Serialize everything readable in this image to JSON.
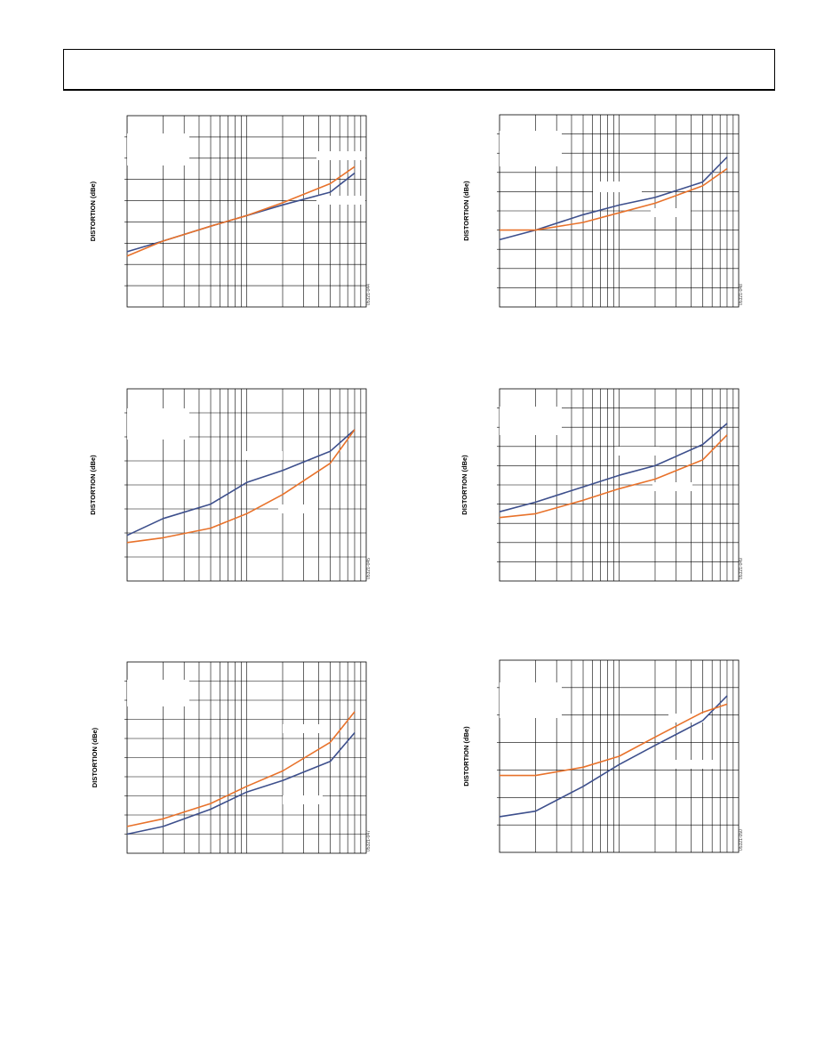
{
  "colors": {
    "series_blue": "#3d4f8c",
    "series_orange": "#e8722b",
    "grid": "#000000"
  },
  "chart_data": [
    {
      "type": "line",
      "ylabel": "DISTORTION (dBe)",
      "figure_id": "05321-044",
      "x_scale": "log",
      "xlim": [
        1,
        100
      ],
      "ylim": [
        0,
        9
      ],
      "grid": true,
      "series": [
        {
          "color_key": "series_blue",
          "x": [
            1,
            2,
            5,
            10,
            20,
            50,
            80
          ],
          "y": [
            2.6,
            3.1,
            3.8,
            4.3,
            4.8,
            5.4,
            6.3
          ]
        },
        {
          "color_key": "series_orange",
          "x": [
            1,
            2,
            5,
            10,
            20,
            50,
            80
          ],
          "y": [
            2.4,
            3.1,
            3.8,
            4.3,
            4.9,
            5.8,
            6.6
          ]
        }
      ]
    },
    {
      "type": "line",
      "ylabel": "DISTORTION (dBe)",
      "figure_id": "05321-048",
      "x_scale": "log",
      "xlim": [
        1,
        100
      ],
      "ylim": [
        0,
        10
      ],
      "grid": true,
      "series": [
        {
          "color_key": "series_blue",
          "x": [
            1,
            2,
            5,
            10,
            20,
            50,
            80
          ],
          "y": [
            3.5,
            4.0,
            4.8,
            5.3,
            5.7,
            6.5,
            7.8
          ]
        },
        {
          "color_key": "series_orange",
          "x": [
            1,
            2,
            5,
            10,
            20,
            50,
            80
          ],
          "y": [
            4.0,
            4.0,
            4.4,
            4.9,
            5.4,
            6.3,
            7.2
          ]
        }
      ]
    },
    {
      "type": "line",
      "ylabel": "DISTORTION (dBe)",
      "figure_id": "05321-045",
      "x_scale": "log",
      "xlim": [
        1,
        100
      ],
      "ylim": [
        0,
        8
      ],
      "grid": true,
      "series": [
        {
          "color_key": "series_blue",
          "x": [
            1,
            2,
            5,
            10,
            20,
            50,
            80
          ],
          "y": [
            1.9,
            2.6,
            3.2,
            4.1,
            4.6,
            5.4,
            6.3
          ]
        },
        {
          "color_key": "series_orange",
          "x": [
            1,
            2,
            5,
            10,
            20,
            50,
            80
          ],
          "y": [
            1.6,
            1.8,
            2.2,
            2.8,
            3.6,
            4.9,
            6.3
          ]
        }
      ]
    },
    {
      "type": "line",
      "ylabel": "DISTORTION (dBe)",
      "figure_id": "05321-049",
      "x_scale": "log",
      "xlim": [
        1,
        100
      ],
      "ylim": [
        0,
        10
      ],
      "grid": true,
      "series": [
        {
          "color_key": "series_blue",
          "x": [
            1,
            2,
            5,
            10,
            20,
            50,
            80
          ],
          "y": [
            3.6,
            4.1,
            4.9,
            5.5,
            6.0,
            7.1,
            8.2
          ]
        },
        {
          "color_key": "series_orange",
          "x": [
            1,
            2,
            5,
            10,
            20,
            50,
            80
          ],
          "y": [
            3.3,
            3.5,
            4.2,
            4.8,
            5.3,
            6.3,
            7.6
          ]
        }
      ]
    },
    {
      "type": "line",
      "ylabel": "DISTORTION (dBe)",
      "figure_id": "05321-047",
      "x_scale": "log",
      "xlim": [
        1,
        100
      ],
      "ylim": [
        0,
        10
      ],
      "grid": true,
      "series": [
        {
          "color_key": "series_blue",
          "x": [
            1,
            2,
            5,
            10,
            20,
            50,
            80
          ],
          "y": [
            1.0,
            1.4,
            2.3,
            3.2,
            3.8,
            4.8,
            6.3
          ]
        },
        {
          "color_key": "series_orange",
          "x": [
            1,
            2,
            5,
            10,
            20,
            50,
            80
          ],
          "y": [
            1.4,
            1.8,
            2.6,
            3.5,
            4.3,
            5.8,
            7.4
          ]
        }
      ]
    },
    {
      "type": "line",
      "ylabel": "DISTORTION (dBe)",
      "figure_id": "05321-050",
      "x_scale": "log",
      "xlim": [
        1,
        100
      ],
      "ylim": [
        0,
        7
      ],
      "grid": true,
      "series": [
        {
          "color_key": "series_blue",
          "x": [
            1,
            2,
            5,
            10,
            20,
            50,
            80
          ],
          "y": [
            1.3,
            1.5,
            2.4,
            3.2,
            3.9,
            4.8,
            5.7
          ]
        },
        {
          "color_key": "series_orange",
          "x": [
            1,
            2,
            5,
            10,
            20,
            50,
            80
          ],
          "y": [
            2.8,
            2.8,
            3.1,
            3.5,
            4.2,
            5.1,
            5.4
          ]
        }
      ]
    }
  ]
}
